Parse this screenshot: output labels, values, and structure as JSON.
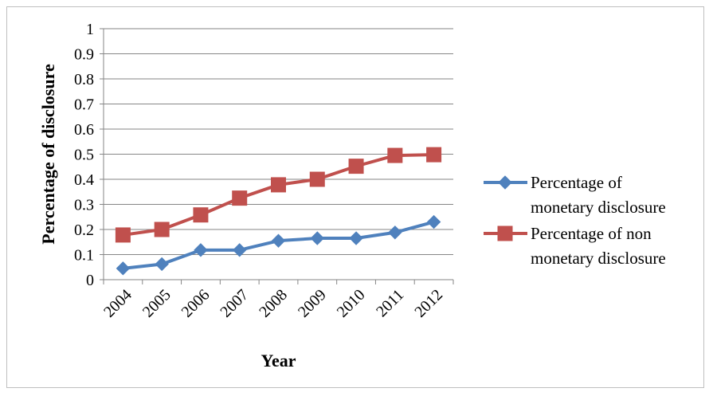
{
  "chart_data": {
    "type": "line",
    "title": "",
    "xlabel": "Year",
    "ylabel": "Percentage of disclosure",
    "categories": [
      "2004",
      "2005",
      "2006",
      "2007",
      "2008",
      "2009",
      "2010",
      "2011",
      "2012"
    ],
    "ylim": [
      0,
      1
    ],
    "yticks": [
      "0",
      "0.1",
      "0.2",
      "0.3",
      "0.4",
      "0.5",
      "0.6",
      "0.7",
      "0.8",
      "0.9",
      "1"
    ],
    "grid": true,
    "legend_position": "right",
    "series": [
      {
        "name_lines": [
          "Percentage of",
          "monetary disclosure"
        ],
        "values": [
          0.045,
          0.062,
          0.118,
          0.118,
          0.155,
          0.165,
          0.165,
          0.188,
          0.23
        ],
        "color": "#4f81bd",
        "marker": "diamond"
      },
      {
        "name_lines": [
          "Percentage of non",
          "monetary disclosure"
        ],
        "values": [
          0.178,
          0.2,
          0.258,
          0.325,
          0.378,
          0.4,
          0.452,
          0.495,
          0.498
        ],
        "color": "#c0504d",
        "marker": "square"
      }
    ]
  }
}
